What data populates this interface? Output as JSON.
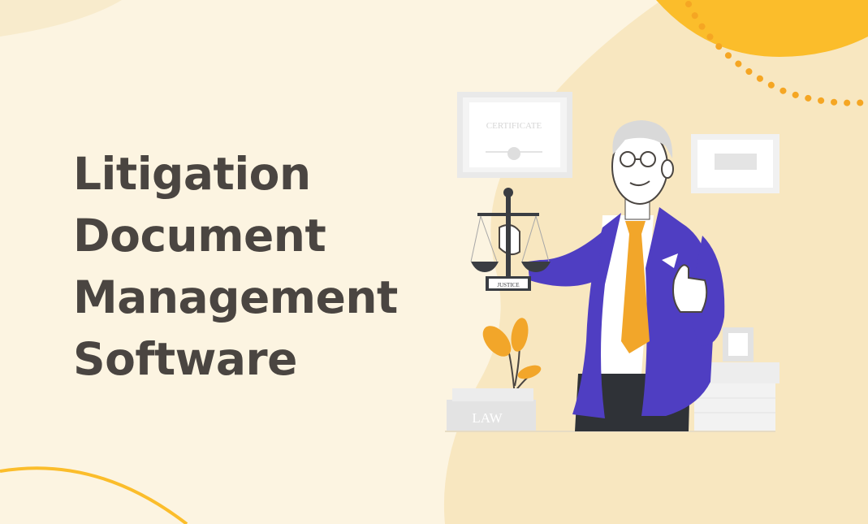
{
  "headline": {
    "line1": "Litigation",
    "line2": "Document",
    "line3": "Management",
    "line4": "Software"
  },
  "illustration": {
    "certificate_text": "CERTIFICATE",
    "scale_plaque_text": "JUSTICE",
    "book_text": "LAW",
    "icons": [
      "blob-background",
      "sun-decoration",
      "dotted-arc",
      "lawyer-figure",
      "scales-of-justice",
      "certificate-frame",
      "wall-frame",
      "potted-plant",
      "law-books",
      "photo-frame",
      "paper-stack"
    ]
  },
  "colors": {
    "background": "#fcf4e1",
    "blob": "#f8e7c0",
    "accent_yellow": "#fbbd2b",
    "dots_orange": "#f5a623",
    "headline": "#4a4541",
    "suit_blue": "#4f3ec2",
    "tie_orange": "#f2a62a"
  }
}
